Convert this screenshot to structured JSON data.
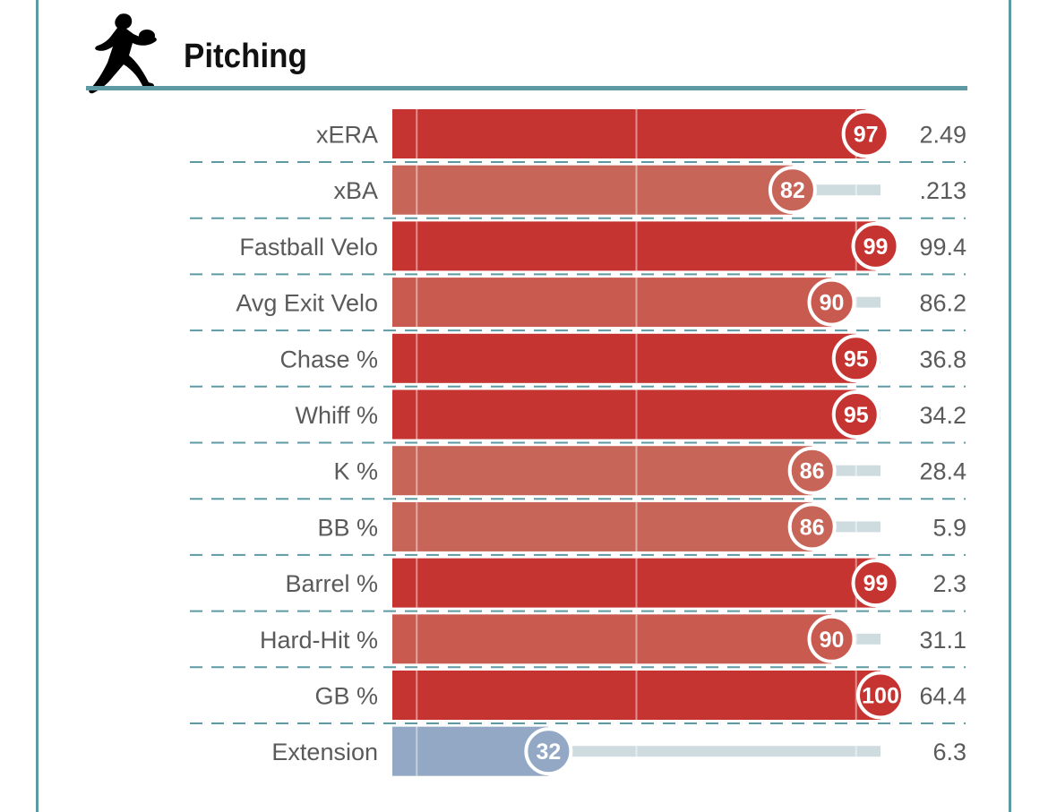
{
  "header": {
    "title": "Pitching",
    "icon": "pitcher-silhouette-icon"
  },
  "colors": {
    "elite": "#c53431",
    "good": "#c86559",
    "mid": "#c85a4f",
    "below": "#93a8c4",
    "track": "#cfdcdf",
    "frame": "#5d9aa3"
  },
  "chart_data": {
    "type": "bar",
    "title": "Pitching",
    "xlim": [
      0,
      100
    ],
    "metrics": [
      {
        "label": "xERA",
        "percentile": 97,
        "value": "2.49"
      },
      {
        "label": "xBA",
        "percentile": 82,
        "value": ".213"
      },
      {
        "label": "Fastball Velo",
        "percentile": 99,
        "value": "99.4"
      },
      {
        "label": "Avg Exit Velo",
        "percentile": 90,
        "value": "86.2"
      },
      {
        "label": "Chase %",
        "percentile": 95,
        "value": "36.8"
      },
      {
        "label": "Whiff %",
        "percentile": 95,
        "value": "34.2"
      },
      {
        "label": "K %",
        "percentile": 86,
        "value": "28.4"
      },
      {
        "label": "BB %",
        "percentile": 86,
        "value": "5.9"
      },
      {
        "label": "Barrel %",
        "percentile": 99,
        "value": "2.3"
      },
      {
        "label": "Hard-Hit %",
        "percentile": 90,
        "value": "31.1"
      },
      {
        "label": "GB %",
        "percentile": 100,
        "value": "64.4"
      },
      {
        "label": "Extension",
        "percentile": 32,
        "value": "6.3"
      }
    ]
  }
}
